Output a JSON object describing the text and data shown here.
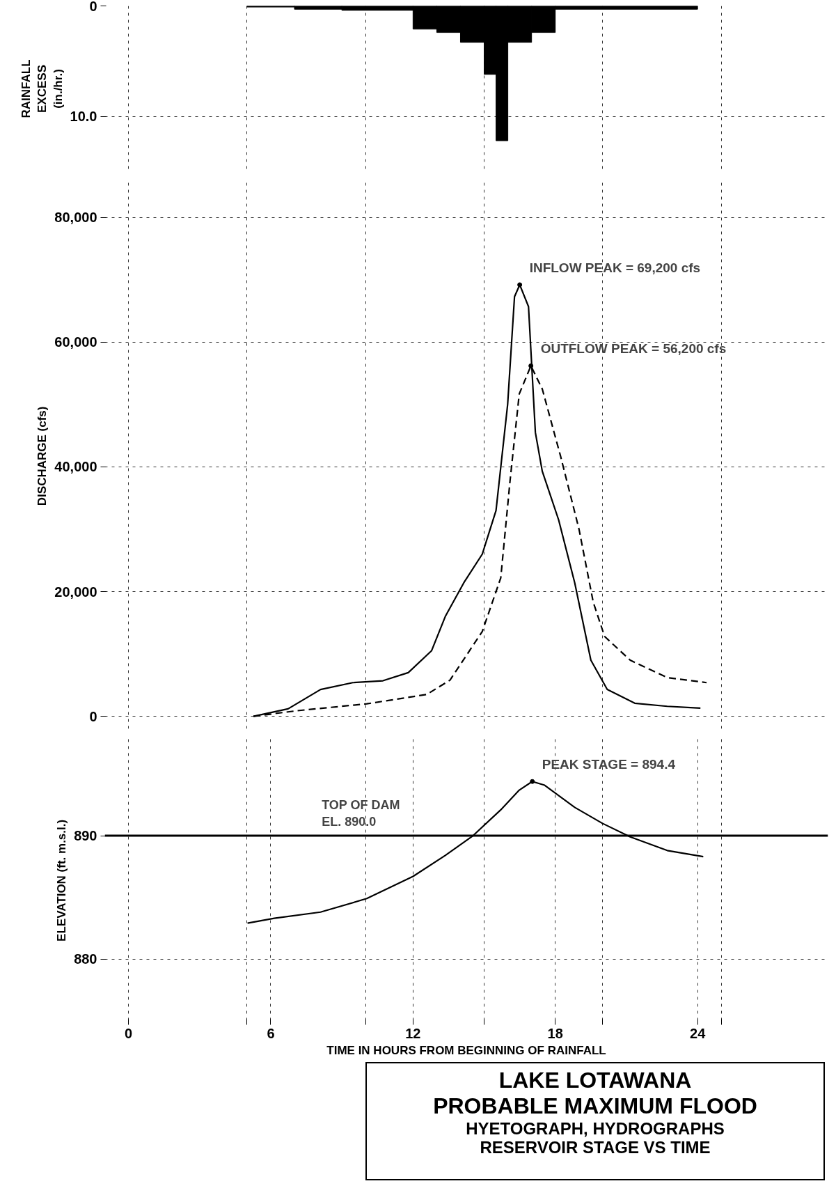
{
  "chart_data": [
    {
      "type": "histogram",
      "ylabel": "RAINFALL\nEXCESS\n(in./hr.)",
      "bins": [
        5,
        7,
        9,
        12,
        13,
        14,
        15,
        15.5,
        16,
        17,
        18,
        24
      ],
      "values": [
        0.1,
        0.3,
        0.4,
        2.1,
        2.4,
        3.3,
        6.2,
        12.2,
        3.3,
        2.4,
        0.3
      ],
      "color": "#000000",
      "xlim": [
        -1,
        29.5
      ],
      "ylim": [
        15,
        0
      ],
      "xticks": [
        {
          "value": 0,
          "label": null
        },
        {
          "value": 5,
          "label": null
        },
        {
          "value": 10,
          "label": null
        },
        {
          "value": 15,
          "label": null
        },
        {
          "value": 20,
          "label": null
        },
        {
          "value": 25,
          "label": null
        }
      ],
      "yticks": [
        0,
        {
          "value": 10,
          "label": "10.0"
        }
      ],
      "grid": true,
      "tick_labels": "y"
    },
    {
      "type": "line",
      "ylabel": "DISCHARGE  (cfs)",
      "xlim": [
        -1,
        29.5
      ],
      "ylim": [
        -2000,
        86000
      ],
      "xticks": [
        {
          "value": 0,
          "label": null
        },
        {
          "value": 5,
          "label": null
        },
        {
          "value": 10,
          "label": null
        },
        {
          "value": 15,
          "label": null
        },
        {
          "value": 20,
          "label": null
        },
        {
          "value": 25,
          "label": null
        }
      ],
      "yticks": [
        0,
        {
          "value": 20000,
          "label": "20,000"
        },
        {
          "value": 40000,
          "label": "40,000"
        },
        {
          "value": 60000,
          "label": "60,000"
        },
        {
          "value": 80000,
          "label": "80,000"
        }
      ],
      "grid": true,
      "tick_labels": "y",
      "series": [
        {
          "color": "#000000",
          "line_style": "solid",
          "x": [
            5.27,
            6.73,
            8.1,
            9.46,
            10.73,
            11.8,
            12.78,
            13.36,
            14.14,
            14.92,
            15.5,
            15.99,
            16.28,
            16.5,
            16.87,
            17.16,
            17.45,
            18.14,
            18.82,
            19.5,
            20.19,
            21.35,
            22.72,
            24.12
          ],
          "values": [
            0,
            1200,
            4300,
            5400,
            5700,
            7000,
            10500,
            16000,
            21400,
            26000,
            33000,
            50000,
            67300,
            69200,
            65700,
            45500,
            39300,
            31500,
            21400,
            9000,
            4300,
            2100,
            1600,
            1300
          ]
        },
        {
          "color": "#000000",
          "line_style": "dashed",
          "x": [
            5.27,
            7.12,
            10.05,
            12.58,
            13.56,
            14.92,
            15.7,
            16.09,
            16.48,
            16.97,
            17.45,
            18.23,
            19.0,
            19.6,
            20.08,
            21.16,
            22.72,
            24.38
          ],
          "values": [
            0,
            900,
            2000,
            3500,
            5800,
            13600,
            22200,
            37700,
            51700,
            56200,
            52500,
            41600,
            30000,
            18300,
            12800,
            9000,
            6200,
            5400
          ]
        }
      ],
      "annotations": [
        {
          "text": "INFLOW PEAK = 69,200 cfs",
          "x": 16.5,
          "y": 69200
        },
        {
          "text": "OUTFLOW PEAK = 56,200 cfs",
          "x": 16.97,
          "y": 56200
        }
      ]
    },
    {
      "type": "line",
      "title": "LAKE LOTAWANA",
      "subtitle": "PROBABLE MAXIMUM FLOOD\nHYETOGRAPH, HYDROGRAPHS\nRESERVOIR STAGE VS TIME",
      "ylabel": "ELEVATION  (ft. m.s.l.)",
      "xlabel": "TIME IN HOURS FROM BEGINNING OF RAINFALL",
      "xlim": [
        -1,
        29.5
      ],
      "ylim": [
        875,
        898
      ],
      "xticks": [
        0,
        {
          "value": 5,
          "label": null
        },
        6,
        {
          "value": 10,
          "label": null
        },
        12,
        {
          "value": 15,
          "label": null
        },
        18,
        {
          "value": 20,
          "label": null
        },
        24,
        {
          "value": 25,
          "label": null
        }
      ],
      "yticks": [
        880,
        890
      ],
      "grid": true,
      "series": [
        {
          "color": "#000000",
          "line_style": "solid",
          "x": [
            5.02,
            6.15,
            8.1,
            10.05,
            12.0,
            13.36,
            14.53,
            15.7,
            16.48,
            17.03,
            17.55,
            18.82,
            19.99,
            21.16,
            22.72,
            24.24
          ],
          "values": [
            882.9,
            883.3,
            883.8,
            884.9,
            886.7,
            888.4,
            890.0,
            892.1,
            893.7,
            894.4,
            894.1,
            892.3,
            891.0,
            889.9,
            888.8,
            888.3
          ]
        }
      ],
      "ref_lines": [
        {
          "axis": "y",
          "value": 890,
          "label": "TOP OF DAM\nEL. 890.0",
          "color": "#000000",
          "line_style": "solid"
        }
      ],
      "annotations": [
        {
          "text": "PEAK STAGE = 894.4",
          "x": 17.03,
          "y": 894.4
        }
      ]
    }
  ]
}
